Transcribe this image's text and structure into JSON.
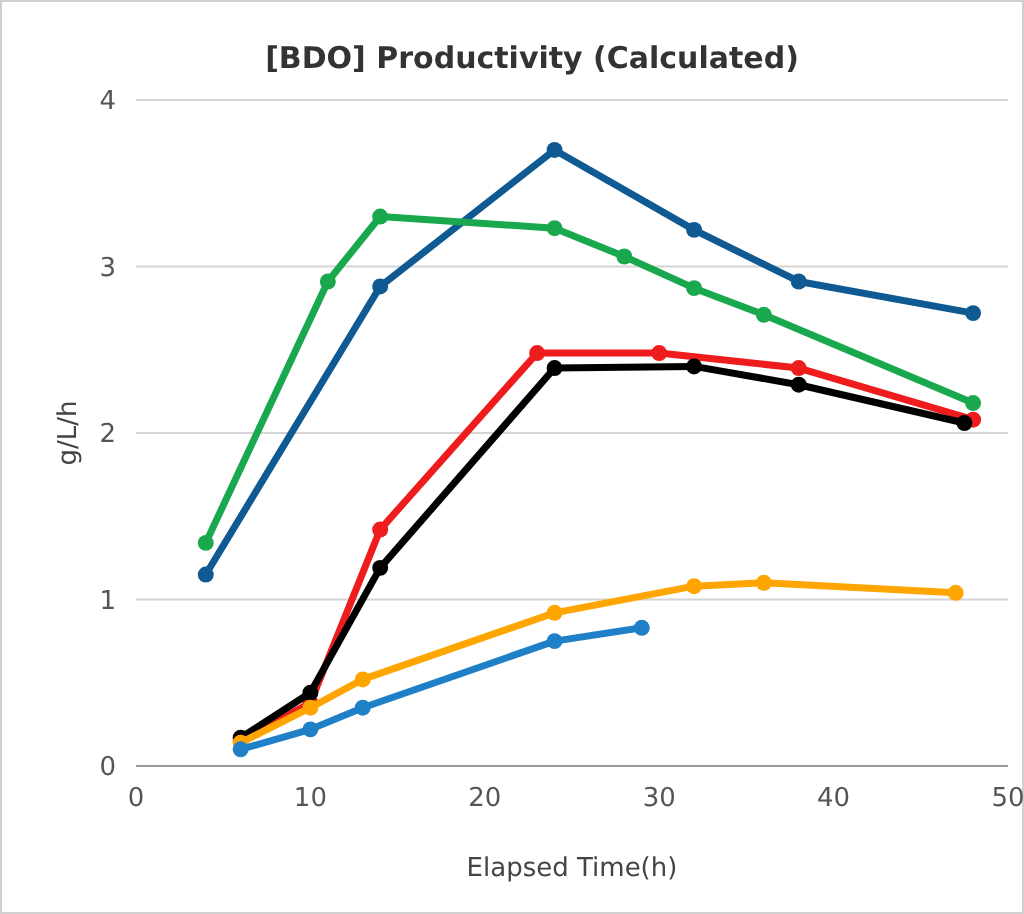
{
  "chart_data": {
    "type": "line",
    "title": "[BDO] Productivity (Calculated)",
    "xlabel": "Elapsed Time(h)",
    "ylabel": "g/L/h",
    "xlim": [
      0,
      50
    ],
    "xticks": [
      0,
      10,
      20,
      30,
      40,
      50
    ],
    "ylim": [
      0,
      4
    ],
    "yticks": [
      0,
      1,
      2,
      3,
      4
    ],
    "grid": "y",
    "marker": "circle",
    "line_style": "solid",
    "series": [
      {
        "color": "#0f5a93",
        "x": [
          4,
          14,
          24,
          32,
          38,
          48
        ],
        "values": [
          1.15,
          2.88,
          3.7,
          3.22,
          2.91,
          2.72
        ]
      },
      {
        "color": "#1aa84f",
        "x": [
          4,
          11,
          14,
          24,
          28,
          32,
          36,
          48
        ],
        "values": [
          1.34,
          2.91,
          3.3,
          3.23,
          3.06,
          2.87,
          2.71,
          2.18
        ]
      },
      {
        "color": "#ee1c1c",
        "x": [
          6,
          10,
          14,
          23,
          30,
          38,
          48
        ],
        "values": [
          0.15,
          0.38,
          1.42,
          2.48,
          2.48,
          2.39,
          2.08
        ]
      },
      {
        "color": "#000000",
        "x": [
          6,
          10,
          14,
          24,
          32,
          38,
          47.5
        ],
        "values": [
          0.17,
          0.44,
          1.19,
          2.39,
          2.4,
          2.29,
          2.06
        ]
      },
      {
        "color": "#ffa500",
        "x": [
          6,
          10,
          13,
          24,
          32,
          36,
          47
        ],
        "values": [
          0.14,
          0.35,
          0.52,
          0.92,
          1.08,
          1.1,
          1.04
        ]
      },
      {
        "color": "#1f7fc7",
        "x": [
          6,
          10,
          13,
          24,
          29
        ],
        "values": [
          0.1,
          0.22,
          0.35,
          0.75,
          0.83
        ]
      }
    ]
  }
}
